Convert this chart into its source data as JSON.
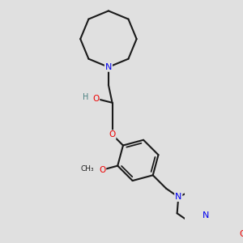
{
  "bg": "#e0e0e0",
  "bond_color": "#1a1a1a",
  "N_color": "#0000ee",
  "O_color": "#ee0000",
  "H_color": "#4a8080",
  "lw": 1.5,
  "figsize": [
    3.0,
    3.0
  ],
  "dpi": 100,
  "xlim": [
    -1.2,
    1.8
  ],
  "ylim": [
    -1.9,
    3.2
  ]
}
